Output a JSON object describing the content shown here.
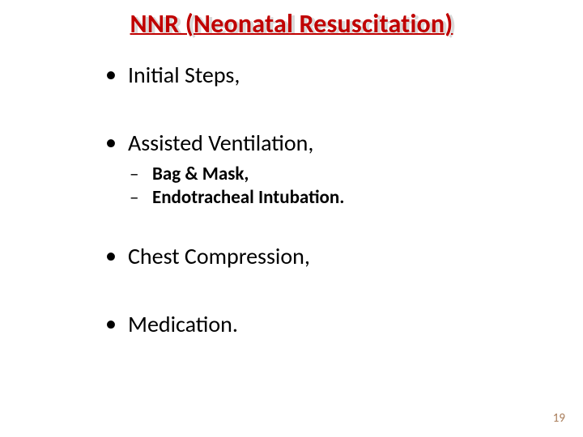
{
  "title": "NNR (Neonatal Resuscitation)",
  "title_shadow": "NNR (Neonatal Resuscitation)",
  "title_color": "#c00000",
  "shadow_color": "#d9d9d9",
  "background_color": "#ffffff",
  "text_color": "#000000",
  "pagenum_color": "#a97d5a",
  "title_fontsize": 32,
  "level1_fontsize": 28,
  "level2_fontsize": 23,
  "bullets": [
    {
      "text": "Initial Steps,",
      "children": []
    },
    {
      "text": "Assisted Ventilation,",
      "children": [
        {
          "text": "Bag & Mask,"
        },
        {
          "text": "Endotracheal Intubation."
        }
      ]
    },
    {
      "text": "Chest Compression,",
      "children": []
    },
    {
      "text": "Medication.",
      "children": []
    }
  ],
  "page_number": "19"
}
